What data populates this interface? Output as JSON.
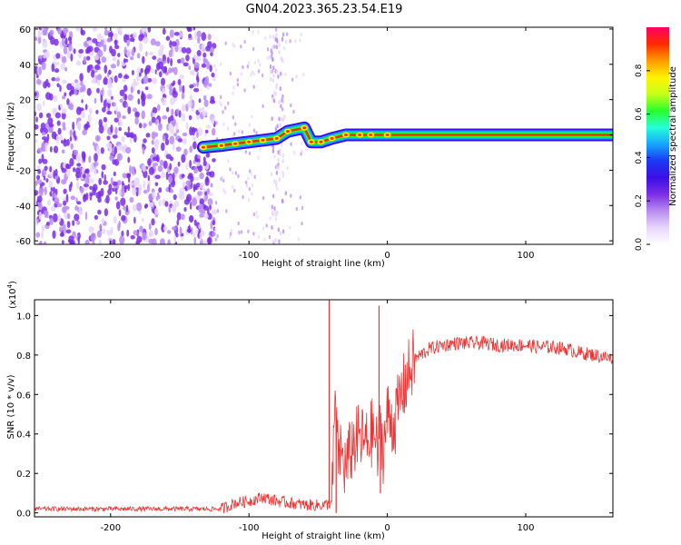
{
  "title": "GN04.2023.365.23.54.E19",
  "colors": {
    "snr_line": "#ee3333",
    "colormap": [
      "#ffffff",
      "#e6d6fa",
      "#b98cf2",
      "#7a2ee6",
      "#3b0ee6",
      "#1b39f5",
      "#16a6ff",
      "#26ffd8",
      "#27ff2a",
      "#c8ff1a",
      "#fff200",
      "#ff9a00",
      "#ff2a00",
      "#ff0066"
    ]
  },
  "chart_data": [
    {
      "type": "heatmap",
      "title": "GN04.2023.365.23.54.E19",
      "xlabel": "Height of straight line (km)",
      "ylabel": "Frequency (Hz)",
      "xlim": [
        -255,
        163
      ],
      "ylim": [
        -62,
        61
      ],
      "x_ticks": [
        -200,
        -100,
        0,
        100
      ],
      "y_ticks": [
        -60,
        -40,
        -20,
        0,
        20,
        40,
        60
      ],
      "colorbar": {
        "label": "Normalized spectral amplitude",
        "range": [
          0.0,
          1.0
        ],
        "ticks": [
          0.0,
          0.2,
          0.4,
          0.6,
          0.8
        ]
      },
      "band_center_hz": [
        {
          "x": -133,
          "y": -7
        },
        {
          "x": -120,
          "y": -6
        },
        {
          "x": -110,
          "y": -5
        },
        {
          "x": -100,
          "y": -4
        },
        {
          "x": -90,
          "y": -3
        },
        {
          "x": -80,
          "y": -2
        },
        {
          "x": -72,
          "y": 2
        },
        {
          "x": -60,
          "y": 4
        },
        {
          "x": -55,
          "y": -4
        },
        {
          "x": -48,
          "y": -4
        },
        {
          "x": -40,
          "y": -2
        },
        {
          "x": -30,
          "y": 0
        },
        {
          "x": -20,
          "y": 0
        },
        {
          "x": -12,
          "y": 0
        },
        {
          "x": 0,
          "y": 0
        },
        {
          "x": 20,
          "y": 0
        },
        {
          "x": 163,
          "y": 0
        }
      ]
    },
    {
      "type": "line",
      "xlabel": "Height of straight line (km)",
      "ylabel": "SNR (10 * v/v)",
      "y_multiplier": "(x10",
      "y_multiplier_exp": "4",
      "y_multiplier_close": ")",
      "xlim": [
        -255,
        163
      ],
      "ylim": [
        -0.02,
        1.08
      ],
      "x_ticks": [
        -200,
        -100,
        0,
        100
      ],
      "y_ticks": [
        0.0,
        0.2,
        0.4,
        0.6,
        0.8,
        1.0
      ],
      "grid": false,
      "x": [
        -255,
        -200,
        -150,
        -120,
        -110,
        -100,
        -90,
        -80,
        -70,
        -60,
        -50,
        -45,
        -40,
        -38,
        -36,
        -34,
        -30,
        -25,
        -20,
        -15,
        -10,
        -7,
        -5,
        -3,
        0,
        5,
        10,
        15,
        20,
        30,
        40,
        50,
        60,
        70,
        80,
        90,
        100,
        110,
        120,
        130,
        140,
        150,
        163
      ],
      "y": [
        0.02,
        0.02,
        0.02,
        0.02,
        0.05,
        0.06,
        0.08,
        0.06,
        0.05,
        0.04,
        0.04,
        0.04,
        0.05,
        0.55,
        0.3,
        0.32,
        0.22,
        0.35,
        0.38,
        0.35,
        0.42,
        0.3,
        0.45,
        0.32,
        0.5,
        0.45,
        0.6,
        0.7,
        0.78,
        0.83,
        0.85,
        0.86,
        0.86,
        0.86,
        0.85,
        0.85,
        0.85,
        0.84,
        0.84,
        0.83,
        0.81,
        0.8,
        0.78
      ],
      "spikes": [
        {
          "x": -42,
          "y": 1.08
        },
        {
          "x": -37,
          "y": 0.0
        },
        {
          "x": -6,
          "y": 1.05
        },
        {
          "x": -5,
          "y": 0.1
        }
      ]
    }
  ]
}
